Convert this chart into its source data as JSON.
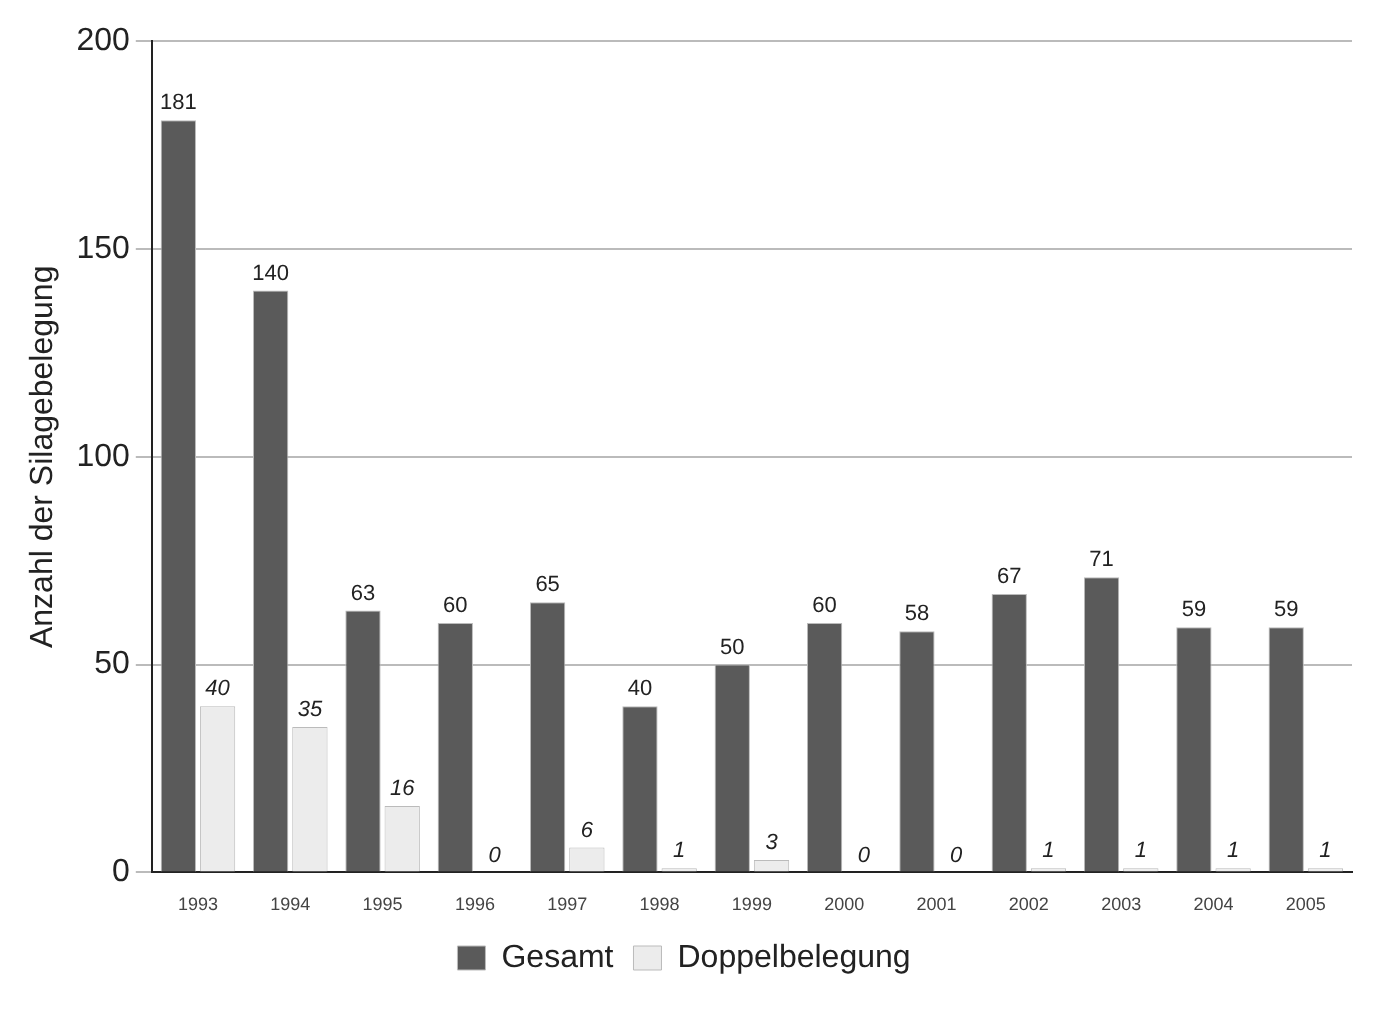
{
  "chart_data": {
    "type": "bar",
    "ylabel": "Anzahl der Silagebelegung",
    "categories": [
      "1993",
      "1994",
      "1995",
      "1996",
      "1997",
      "1998",
      "1999",
      "2000",
      "2001",
      "2002",
      "2003",
      "2004",
      "2005"
    ],
    "series": [
      {
        "name": "Gesamt",
        "color": "#5a5a5a",
        "values": [
          181,
          140,
          63,
          60,
          65,
          40,
          50,
          60,
          58,
          67,
          71,
          59,
          59
        ]
      },
      {
        "name": "Doppelbelegung",
        "color": "#ececec",
        "values": [
          40,
          35,
          16,
          0,
          6,
          1,
          3,
          0,
          0,
          1,
          1,
          1,
          1
        ]
      }
    ],
    "ylim": [
      0,
      200
    ],
    "yticks": [
      0,
      50,
      100,
      150,
      200
    ],
    "grid": "y",
    "legend": "bottom",
    "data_labels": true
  }
}
